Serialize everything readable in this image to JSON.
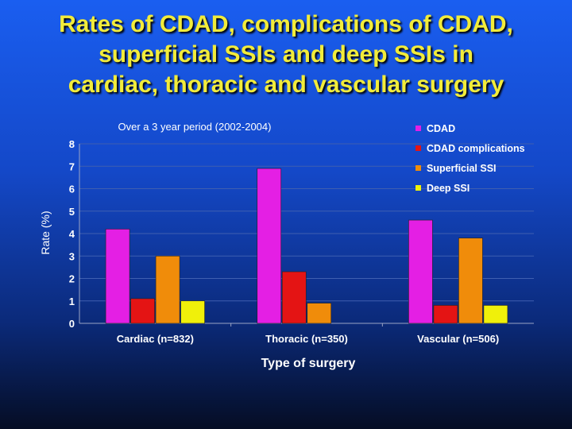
{
  "slide_title": [
    "Rates of CDAD, complications of CDAD,",
    "superficial SSIs and deep SSIs in",
    "cardiac, thoracic and vascular surgery"
  ],
  "colors": {
    "title": "#f2ec3a",
    "CDAD": "#e41fe4",
    "CDAD complications": "#e41414",
    "Superficial SSI": "#f08c0a",
    "Deep SSI": "#f0f00a"
  },
  "chart_data": {
    "type": "bar",
    "subtitle": "Over a 3 year period (2002-2004)",
    "xlabel": "Type of surgery",
    "ylabel": "Rate (%)",
    "ylim": [
      0,
      8
    ],
    "yticks": [
      0,
      1,
      2,
      3,
      4,
      5,
      6,
      7,
      8
    ],
    "grid": true,
    "legend_position": "top-right",
    "categories": [
      "Cardiac (n=832)",
      "Thoracic (n=350)",
      "Vascular (n=506)"
    ],
    "series": [
      {
        "name": "CDAD",
        "values": [
          4.2,
          6.9,
          4.6
        ]
      },
      {
        "name": "CDAD complications",
        "values": [
          1.1,
          2.3,
          0.8
        ]
      },
      {
        "name": "Superficial SSI",
        "values": [
          3.0,
          0.9,
          3.8
        ]
      },
      {
        "name": "Deep SSI",
        "values": [
          1.0,
          null,
          0.8
        ]
      }
    ]
  }
}
